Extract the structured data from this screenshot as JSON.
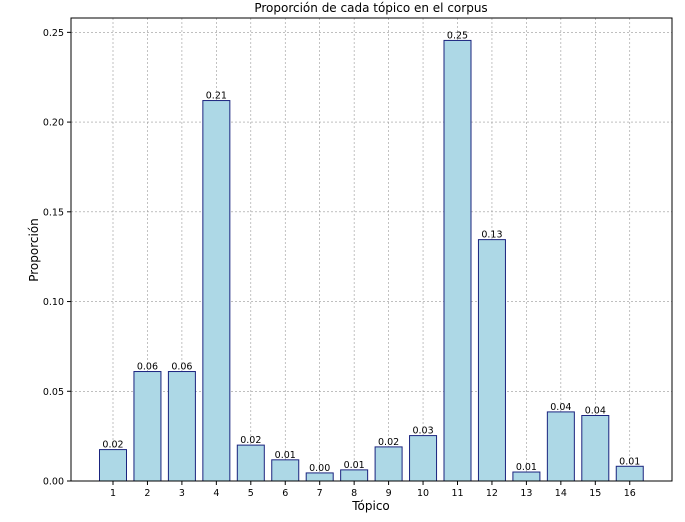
{
  "chart_data": {
    "type": "bar",
    "title": "Proporción de cada tópico en el corpus",
    "xlabel": "Tópico",
    "ylabel": "Proporción",
    "categories": [
      "1",
      "2",
      "3",
      "4",
      "5",
      "6",
      "7",
      "8",
      "9",
      "10",
      "11",
      "12",
      "13",
      "14",
      "15",
      "16"
    ],
    "values": [
      0.0175,
      0.061,
      0.061,
      0.212,
      0.02,
      0.0118,
      0.0045,
      0.0062,
      0.019,
      0.0253,
      0.2455,
      0.1345,
      0.005,
      0.0385,
      0.0365,
      0.0082
    ],
    "value_labels": [
      "0.02",
      "0.06",
      "0.06",
      "0.21",
      "0.02",
      "0.01",
      "0.00",
      "0.01",
      "0.02",
      "0.03",
      "0.25",
      "0.13",
      "0.01",
      "0.04",
      "0.04",
      "0.01"
    ],
    "ylim": [
      0,
      0.258
    ],
    "yticks": [
      0.0,
      0.05,
      0.1,
      0.15,
      0.2,
      0.25
    ],
    "ytick_labels": [
      "0.00",
      "0.05",
      "0.10",
      "0.15",
      "0.20",
      "0.25"
    ],
    "grid": true,
    "colors": {
      "bar_fill": "#add8e6",
      "bar_edge": "#1a237e",
      "grid": "#999999"
    }
  }
}
